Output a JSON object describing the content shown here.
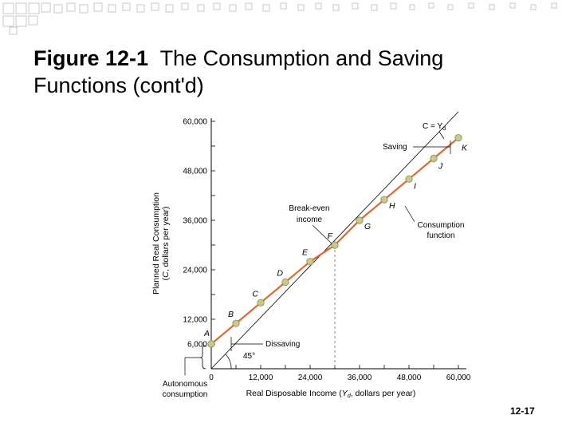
{
  "slide": {
    "title_bold": "Figure 12-1",
    "title_rest": "The Consumption and Saving Functions (cont'd)",
    "page_number": "12-17"
  },
  "colors": {
    "consumption_line": "#e0692f",
    "point_fill": "#c9c98a",
    "point_stroke": "#8a8a55",
    "reference_line": "#000000",
    "deco_square": "#c8c8c8"
  },
  "chart_data": {
    "type": "line",
    "title": "",
    "xlabel": "Real Disposable Income (Yd, dollars per year)",
    "ylabel": "Planned Real Consumption (C, dollars per year)",
    "xlim": [
      0,
      60000
    ],
    "ylim": [
      0,
      60000
    ],
    "x_ticks": [
      "0",
      "12,000",
      "24,000",
      "36,000",
      "48,000",
      "60,000"
    ],
    "y_ticks": [
      "6,000",
      "12,000",
      "24,000",
      "36,000",
      "48,000",
      "60,000"
    ],
    "series": [
      {
        "name": "Consumption function",
        "points": [
          {
            "label": "A",
            "x": 0,
            "y": 6000
          },
          {
            "label": "B",
            "x": 6000,
            "y": 11000
          },
          {
            "label": "C",
            "x": 12000,
            "y": 16000
          },
          {
            "label": "D",
            "x": 18000,
            "y": 21000
          },
          {
            "label": "E",
            "x": 24000,
            "y": 26000
          },
          {
            "label": "F",
            "x": 30000,
            "y": 30000
          },
          {
            "label": "G",
            "x": 36000,
            "y": 36000
          },
          {
            "label": "H",
            "x": 42000,
            "y": 41000
          },
          {
            "label": "I",
            "x": 48000,
            "y": 46000
          },
          {
            "label": "J",
            "x": 54000,
            "y": 51000
          },
          {
            "label": "K",
            "x": 60000,
            "y": 56000
          }
        ]
      },
      {
        "name": "C = Yd",
        "points": [
          {
            "x": 0,
            "y": 0
          },
          {
            "x": 60000,
            "y": 60000
          }
        ]
      }
    ],
    "annotations": {
      "reference_line_label": "C = Yd",
      "saving": "Saving",
      "break_even": "Break-even income",
      "consumption_function": "Consumption function",
      "dissaving": "Dissaving",
      "angle": "45°",
      "autonomous": "Autonomous consumption"
    }
  }
}
